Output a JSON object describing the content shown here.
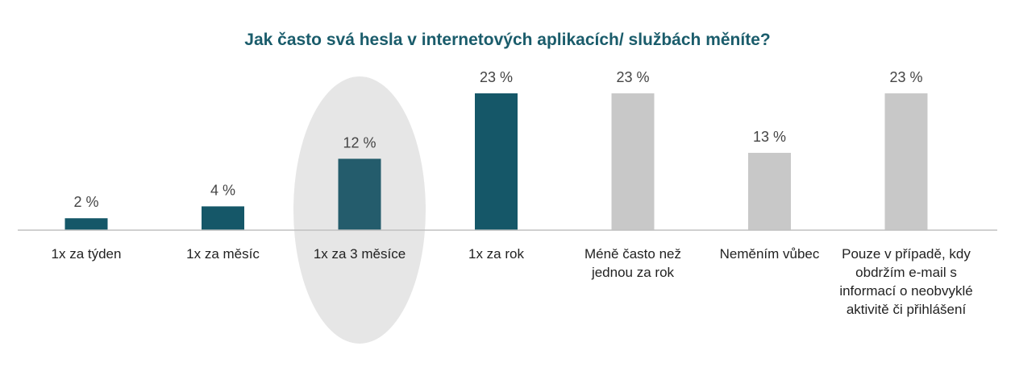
{
  "chart_data": {
    "type": "bar",
    "title": "Jak často svá hesla v internetových aplikacích/ službách měníte?",
    "categories": [
      "1x za týden",
      "1x za měsíc",
      "1x za 3 měsíce",
      "1x za rok",
      "Méně často než jednou za rok",
      "Neměním vůbec",
      "Pouze v případě, kdy obdržím e-mail s informací o neobvyklé aktivitě či přihlášení"
    ],
    "values": [
      2,
      4,
      12,
      23,
      23,
      13,
      23
    ],
    "value_labels": [
      "2 %",
      "4 %",
      "12 %",
      "23 %",
      "23 %",
      "13 %",
      "23 %"
    ],
    "unit": "%",
    "ylim": [
      0,
      25
    ],
    "grid": false,
    "legend": "none",
    "highlight_category": "1x za 3 měsíce",
    "colors": {
      "primary": "#155768",
      "highlight_bar": "#245c6c",
      "muted": "#c8c8c8",
      "highlight_ellipse": "#e6e6e6",
      "baseline": "#c0c0c0"
    },
    "bar_color_roles": [
      "primary",
      "primary",
      "highlight_bar",
      "primary",
      "muted",
      "muted",
      "muted"
    ]
  }
}
